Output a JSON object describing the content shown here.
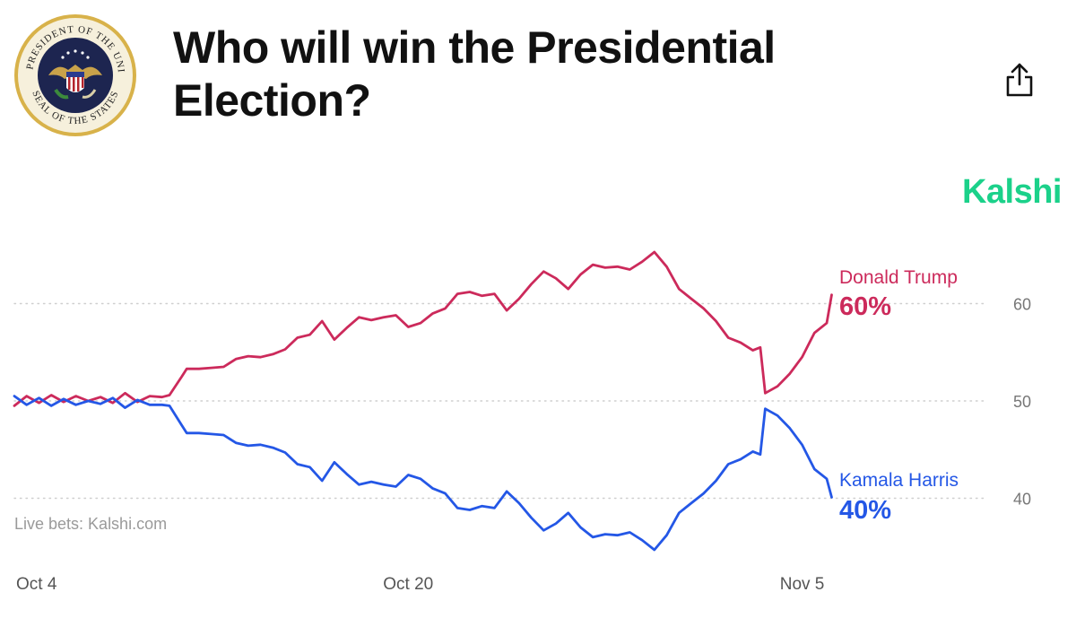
{
  "header": {
    "title": "Who will win the Presidential Election?",
    "seal_text_top": "THE PRESIDENT OF THE UNITED",
    "seal_text_bottom": "SEAL OF THE STATES",
    "seal_icon": "presidential-seal-icon",
    "share_icon": "share-icon"
  },
  "brand": {
    "name": "Kalshi",
    "color": "#1bd18a"
  },
  "source_note": "Live bets: Kalshi.com",
  "colors": {
    "trump": "#cc2a5b",
    "harris": "#2457e6",
    "grid": "#cfcfcf"
  },
  "chart_data": {
    "type": "line",
    "title": "Who will win the Presidential Election?",
    "x_start": "Oct 4",
    "x_end": "Nov 5",
    "x_ticks": [
      {
        "label": "Oct 4",
        "day": 0
      },
      {
        "label": "Oct 20",
        "day": 16
      },
      {
        "label": "Nov 5",
        "day": 32
      }
    ],
    "xlim": [
      0,
      33
    ],
    "ylim": [
      35,
      67
    ],
    "y_ticks": [
      40,
      50,
      60
    ],
    "grid": "horizontal dotted",
    "legend": "inline labels at right end of lines",
    "series": [
      {
        "name": "Donald Trump",
        "label_value": "60%",
        "color": "#cc2a5b",
        "points": [
          [
            0,
            49.5
          ],
          [
            0.5,
            50.5
          ],
          [
            1,
            49.8
          ],
          [
            1.5,
            50.6
          ],
          [
            2,
            49.9
          ],
          [
            2.5,
            50.5
          ],
          [
            3,
            50
          ],
          [
            3.5,
            50.4
          ],
          [
            4,
            49.8
          ],
          [
            4.5,
            50.8
          ],
          [
            5,
            49.9
          ],
          [
            5.5,
            50.5
          ],
          [
            6,
            50.4
          ],
          [
            6.3,
            50.6
          ],
          [
            6.8,
            52.5
          ],
          [
            7,
            53.3
          ],
          [
            7.5,
            53.3
          ],
          [
            8,
            53.4
          ],
          [
            8.5,
            53.5
          ],
          [
            9,
            54.3
          ],
          [
            9.5,
            54.6
          ],
          [
            10,
            54.5
          ],
          [
            10.5,
            54.8
          ],
          [
            11,
            55.3
          ],
          [
            11.5,
            56.5
          ],
          [
            12,
            56.8
          ],
          [
            12.5,
            58.2
          ],
          [
            13,
            56.3
          ],
          [
            13.5,
            57.5
          ],
          [
            14,
            58.6
          ],
          [
            14.5,
            58.3
          ],
          [
            15,
            58.6
          ],
          [
            15.5,
            58.8
          ],
          [
            16,
            57.6
          ],
          [
            16.5,
            58.0
          ],
          [
            17,
            59.0
          ],
          [
            17.5,
            59.5
          ],
          [
            18,
            61.0
          ],
          [
            18.5,
            61.2
          ],
          [
            19,
            60.8
          ],
          [
            19.5,
            61.0
          ],
          [
            20,
            59.3
          ],
          [
            20.5,
            60.5
          ],
          [
            21,
            62.0
          ],
          [
            21.5,
            63.3
          ],
          [
            22,
            62.6
          ],
          [
            22.5,
            61.5
          ],
          [
            23,
            63.0
          ],
          [
            23.5,
            64.0
          ],
          [
            24,
            63.7
          ],
          [
            24.5,
            63.8
          ],
          [
            25,
            63.5
          ],
          [
            25.5,
            64.3
          ],
          [
            26,
            65.3
          ],
          [
            26.5,
            63.8
          ],
          [
            27,
            61.5
          ],
          [
            27.5,
            60.5
          ],
          [
            28,
            59.5
          ],
          [
            28.5,
            58.2
          ],
          [
            29,
            56.5
          ],
          [
            29.5,
            56.0
          ],
          [
            30,
            55.2
          ],
          [
            30.3,
            55.5
          ],
          [
            30.5,
            50.8
          ],
          [
            31,
            51.5
          ],
          [
            31.5,
            52.8
          ],
          [
            32,
            54.5
          ],
          [
            32.5,
            57.0
          ],
          [
            33,
            58.0
          ],
          [
            33.2,
            60.9
          ]
        ]
      },
      {
        "name": "Kamala Harris",
        "label_value": "40%",
        "color": "#2457e6",
        "points": [
          [
            0,
            50.5
          ],
          [
            0.5,
            49.6
          ],
          [
            1,
            50.3
          ],
          [
            1.5,
            49.5
          ],
          [
            2,
            50.2
          ],
          [
            2.5,
            49.6
          ],
          [
            3,
            50
          ],
          [
            3.5,
            49.7
          ],
          [
            4,
            50.3
          ],
          [
            4.5,
            49.3
          ],
          [
            5,
            50.1
          ],
          [
            5.5,
            49.6
          ],
          [
            6,
            49.6
          ],
          [
            6.3,
            49.5
          ],
          [
            6.8,
            47.5
          ],
          [
            7,
            46.7
          ],
          [
            7.5,
            46.7
          ],
          [
            8,
            46.6
          ],
          [
            8.5,
            46.5
          ],
          [
            9,
            45.7
          ],
          [
            9.5,
            45.4
          ],
          [
            10,
            45.5
          ],
          [
            10.5,
            45.2
          ],
          [
            11,
            44.7
          ],
          [
            11.5,
            43.5
          ],
          [
            12,
            43.2
          ],
          [
            12.5,
            41.8
          ],
          [
            13,
            43.7
          ],
          [
            13.5,
            42.5
          ],
          [
            14,
            41.4
          ],
          [
            14.5,
            41.7
          ],
          [
            15,
            41.4
          ],
          [
            15.5,
            41.2
          ],
          [
            16,
            42.4
          ],
          [
            16.5,
            42.0
          ],
          [
            17,
            41.0
          ],
          [
            17.5,
            40.5
          ],
          [
            18,
            39.0
          ],
          [
            18.5,
            38.8
          ],
          [
            19,
            39.2
          ],
          [
            19.5,
            39.0
          ],
          [
            20,
            40.7
          ],
          [
            20.5,
            39.5
          ],
          [
            21,
            38.0
          ],
          [
            21.5,
            36.7
          ],
          [
            22,
            37.4
          ],
          [
            22.5,
            38.5
          ],
          [
            23,
            37.0
          ],
          [
            23.5,
            36.0
          ],
          [
            24,
            36.3
          ],
          [
            24.5,
            36.2
          ],
          [
            25,
            36.5
          ],
          [
            25.5,
            35.7
          ],
          [
            26,
            34.7
          ],
          [
            26.5,
            36.2
          ],
          [
            27,
            38.5
          ],
          [
            27.5,
            39.5
          ],
          [
            28,
            40.5
          ],
          [
            28.5,
            41.8
          ],
          [
            29,
            43.5
          ],
          [
            29.5,
            44.0
          ],
          [
            30,
            44.8
          ],
          [
            30.3,
            44.5
          ],
          [
            30.5,
            49.2
          ],
          [
            31,
            48.5
          ],
          [
            31.5,
            47.2
          ],
          [
            32,
            45.5
          ],
          [
            32.5,
            43.0
          ],
          [
            33,
            42.0
          ],
          [
            33.2,
            40.1
          ]
        ]
      }
    ]
  }
}
